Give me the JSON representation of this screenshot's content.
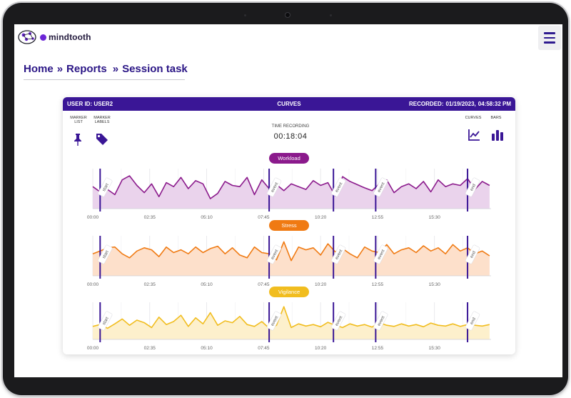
{
  "app": {
    "logo_text": "mindtooth"
  },
  "breadcrumb": {
    "items": [
      "Home",
      "Reports",
      "Session task"
    ],
    "separator": "»"
  },
  "card": {
    "header_left": "USER ID: USER2",
    "header_center": "CURVES",
    "header_right_label": "RECORDED:",
    "header_right_date": "01/19/2023,",
    "header_right_time": "04:58:32 PM"
  },
  "controls": {
    "marker_list_label": "MARKER LIST",
    "marker_labels_label": "MARKER LABELS",
    "time_recording_label": "TIME RECORDING",
    "time_recording_value": "00:18:04",
    "curves_label": "CURVES",
    "bars_label": "BARS"
  },
  "colors": {
    "header_bg": "#3a1696",
    "breadcrumb": "#2b1686",
    "workload": "#8b1a8c",
    "workload_fill": "#ead3ec",
    "stress": "#f07a12",
    "stress_fill": "#fde0cb",
    "vigilance": "#f1bd1f",
    "vigilance_fill": "#fdf0cc",
    "marker": "#3a1696"
  },
  "x_axis": {
    "tick_labels": [
      "00:00",
      "02:35",
      "05:10",
      "07:45",
      "10:20",
      "12:55",
      "15:30"
    ],
    "tick_seconds": [
      0,
      155,
      310,
      465,
      620,
      775,
      930
    ],
    "total_seconds": 1084
  },
  "markers": [
    {
      "label": "start",
      "time_sec": 20
    },
    {
      "label": "event",
      "time_sec": 480
    },
    {
      "label": "event",
      "time_sec": 655
    },
    {
      "label": "event",
      "time_sec": 770
    },
    {
      "label": "end",
      "time_sec": 1020
    }
  ],
  "chart_data": [
    {
      "type": "area",
      "title": "Workload",
      "x_unit": "seconds",
      "x": [
        0,
        20,
        40,
        60,
        80,
        100,
        120,
        140,
        160,
        180,
        200,
        220,
        240,
        260,
        280,
        300,
        320,
        340,
        360,
        380,
        400,
        420,
        440,
        460,
        480,
        500,
        520,
        540,
        560,
        580,
        600,
        620,
        640,
        660,
        680,
        700,
        720,
        740,
        760,
        780,
        800,
        820,
        840,
        860,
        880,
        900,
        920,
        940,
        960,
        980,
        1000,
        1020,
        1040,
        1060,
        1080
      ],
      "values": [
        0.55,
        0.42,
        0.48,
        0.35,
        0.72,
        0.82,
        0.58,
        0.4,
        0.62,
        0.3,
        0.65,
        0.55,
        0.78,
        0.5,
        0.7,
        0.62,
        0.25,
        0.38,
        0.68,
        0.58,
        0.55,
        0.78,
        0.35,
        0.72,
        0.5,
        0.6,
        0.45,
        0.62,
        0.55,
        0.48,
        0.7,
        0.58,
        0.65,
        0.32,
        0.8,
        0.68,
        0.6,
        0.52,
        0.45,
        0.62,
        0.72,
        0.4,
        0.55,
        0.62,
        0.5,
        0.68,
        0.42,
        0.72,
        0.55,
        0.62,
        0.58,
        0.75,
        0.48,
        0.68,
        0.58
      ],
      "ylim": [
        0,
        1
      ]
    },
    {
      "type": "area",
      "title": "Stress",
      "x_unit": "seconds",
      "x": [
        0,
        20,
        40,
        60,
        80,
        100,
        120,
        140,
        160,
        180,
        200,
        220,
        240,
        260,
        280,
        300,
        320,
        340,
        360,
        380,
        400,
        420,
        440,
        460,
        480,
        500,
        520,
        540,
        560,
        580,
        600,
        620,
        640,
        660,
        680,
        700,
        720,
        740,
        760,
        780,
        800,
        820,
        840,
        860,
        880,
        900,
        920,
        940,
        960,
        980,
        1000,
        1020,
        1040,
        1060,
        1080
      ],
      "values": [
        0.55,
        0.62,
        0.7,
        0.72,
        0.55,
        0.45,
        0.62,
        0.7,
        0.65,
        0.48,
        0.72,
        0.58,
        0.65,
        0.55,
        0.72,
        0.58,
        0.68,
        0.74,
        0.55,
        0.7,
        0.52,
        0.45,
        0.72,
        0.58,
        0.55,
        0.4,
        0.85,
        0.38,
        0.72,
        0.65,
        0.7,
        0.52,
        0.8,
        0.6,
        0.68,
        0.55,
        0.45,
        0.72,
        0.62,
        0.58,
        0.78,
        0.55,
        0.65,
        0.7,
        0.58,
        0.75,
        0.62,
        0.7,
        0.55,
        0.78,
        0.62,
        0.7,
        0.55,
        0.62,
        0.5
      ],
      "ylim": [
        0,
        1
      ]
    },
    {
      "type": "area",
      "title": "Vigilance",
      "x_unit": "seconds",
      "x": [
        0,
        20,
        40,
        60,
        80,
        100,
        120,
        140,
        160,
        180,
        200,
        220,
        240,
        260,
        280,
        300,
        320,
        340,
        360,
        380,
        400,
        420,
        440,
        460,
        480,
        500,
        520,
        540,
        560,
        580,
        600,
        620,
        640,
        660,
        680,
        700,
        720,
        740,
        760,
        780,
        800,
        820,
        840,
        860,
        880,
        900,
        920,
        940,
        960,
        980,
        1000,
        1020,
        1040,
        1060,
        1080
      ],
      "values": [
        0.35,
        0.4,
        0.3,
        0.42,
        0.55,
        0.38,
        0.52,
        0.45,
        0.32,
        0.6,
        0.4,
        0.48,
        0.65,
        0.35,
        0.58,
        0.42,
        0.72,
        0.38,
        0.5,
        0.45,
        0.62,
        0.4,
        0.35,
        0.48,
        0.3,
        0.38,
        0.88,
        0.32,
        0.42,
        0.36,
        0.4,
        0.34,
        0.46,
        0.38,
        0.32,
        0.42,
        0.36,
        0.4,
        0.33,
        0.45,
        0.38,
        0.35,
        0.42,
        0.36,
        0.4,
        0.34,
        0.44,
        0.38,
        0.36,
        0.42,
        0.35,
        0.4,
        0.38,
        0.36,
        0.4
      ],
      "ylim": [
        0,
        1
      ]
    }
  ]
}
